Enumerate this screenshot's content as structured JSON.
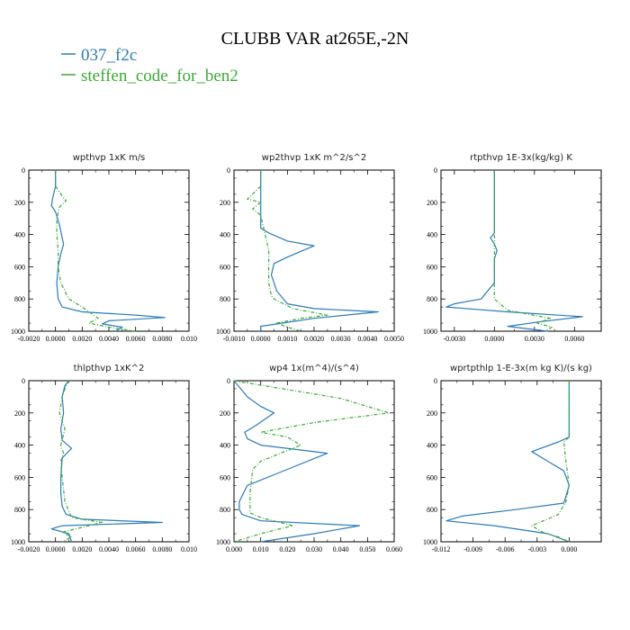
{
  "figure": {
    "title": "CLUBB VAR at265E,-2N",
    "legend": [
      {
        "name": "037_f2c",
        "color": "#2b7bb9"
      },
      {
        "name": "steffen_code_for_ben2",
        "color": "#3aa935"
      }
    ]
  },
  "chart_data": [
    {
      "type": "line",
      "title": "wpthvp  1xK m/s",
      "xlim": [
        -0.002,
        0.01
      ],
      "ylim": [
        0,
        1000
      ],
      "y_inverted": true,
      "xticks": [
        "-0.0020",
        "0.0000",
        "0.0020",
        "0.0040",
        "0.0060",
        "0.0080",
        "0.010"
      ],
      "xtick_values": [
        -0.002,
        0,
        0.002,
        0.004,
        0.006,
        0.008,
        0.01
      ],
      "yticks": [
        "0",
        "200",
        "400",
        "600",
        "800",
        "1000"
      ],
      "series": [
        {
          "name": "037_f2c",
          "style": "solid",
          "x": [
            0.0,
            0.0,
            -0.0002,
            -0.0003,
            0.0,
            0.0003,
            0.0006,
            0.0004,
            0.0002,
            0.0001,
            0.0002,
            0.0005,
            0.002,
            0.006,
            0.0082,
            0.004,
            0.0035,
            0.005,
            0.0045
          ],
          "y": [
            0,
            100,
            170,
            220,
            260,
            340,
            460,
            520,
            600,
            700,
            800,
            850,
            880,
            900,
            915,
            935,
            955,
            975,
            1000
          ]
        },
        {
          "name": "steffen_code_for_ben2",
          "style": "dashed",
          "x": [
            0.0,
            0.0,
            0.0005,
            0.0008,
            0.0003,
            0.0001,
            0.0001,
            0.0002,
            0.0002,
            0.0004,
            0.001,
            0.002,
            0.0032,
            0.0025,
            0.004,
            0.006
          ],
          "y": [
            0,
            100,
            160,
            190,
            230,
            300,
            400,
            500,
            600,
            700,
            800,
            850,
            920,
            950,
            975,
            1000
          ]
        }
      ]
    },
    {
      "type": "line",
      "title": "wp2thvp  1xK m^2/s^2",
      "xlim": [
        -0.001,
        0.005
      ],
      "ylim": [
        0,
        1000
      ],
      "y_inverted": true,
      "xticks": [
        "-0.0010",
        "0.0000",
        "0.0010",
        "0.0020",
        "0.0030",
        "0.0040",
        "0.0050"
      ],
      "xtick_values": [
        -0.001,
        0,
        0.001,
        0.002,
        0.003,
        0.004,
        0.005
      ],
      "yticks": [
        "0",
        "200",
        "400",
        "600",
        "800",
        "1000"
      ],
      "series": [
        {
          "name": "037_f2c",
          "style": "solid",
          "x": [
            0.0,
            0.0,
            0.0,
            0.0,
            0.0,
            0.0003,
            0.001,
            0.002,
            0.001,
            0.0005,
            0.0004,
            0.0006,
            0.001,
            0.002,
            0.0044,
            0.002,
            0.0008,
            0.0,
            0.0
          ],
          "y": [
            0,
            100,
            200,
            300,
            360,
            390,
            440,
            470,
            540,
            580,
            650,
            750,
            830,
            860,
            880,
            920,
            950,
            970,
            1000
          ]
        },
        {
          "name": "steffen_code_for_ben2",
          "style": "dashed",
          "x": [
            0.0,
            0.0,
            -0.0005,
            0.0,
            -0.0003,
            0.0,
            0.0001,
            0.0003,
            0.0003,
            0.0003,
            0.0004,
            0.0005,
            0.0012,
            0.0025,
            0.0015,
            0.0006,
            0.001,
            0.0015
          ],
          "y": [
            0,
            100,
            180,
            200,
            240,
            280,
            350,
            500,
            600,
            700,
            780,
            800,
            860,
            900,
            920,
            950,
            975,
            1000
          ]
        }
      ]
    },
    {
      "type": "line",
      "title": "rtpthvp  1E-3x(kg/kg) K",
      "xlim": [
        -0.004,
        0.008
      ],
      "ylim": [
        0,
        1000
      ],
      "y_inverted": true,
      "xticks": [
        "-0.0030",
        "0.0000",
        "0.0030",
        "0.0060"
      ],
      "xtick_values": [
        -0.003,
        0,
        0.003,
        0.006
      ],
      "yticks": [
        "0",
        "200",
        "400",
        "600",
        "800",
        "1000"
      ],
      "series": [
        {
          "name": "037_f2c",
          "style": "solid",
          "x": [
            0.0,
            0.0,
            0.0,
            -0.0003,
            0.0,
            0.0002,
            0.0,
            0.0,
            -0.001,
            -0.003,
            -0.0036,
            0.001,
            0.0066,
            0.0035,
            0.001,
            0.004
          ],
          "y": [
            0,
            200,
            390,
            420,
            460,
            500,
            550,
            700,
            800,
            830,
            850,
            880,
            910,
            940,
            970,
            1000
          ]
        },
        {
          "name": "steffen_code_for_ben2",
          "style": "dashed",
          "x": [
            0.0,
            0.0,
            0.0,
            0.0,
            0.0,
            0.001,
            0.0042,
            0.0032,
            0.0043,
            0.0038
          ],
          "y": [
            0,
            200,
            400,
            600,
            800,
            870,
            920,
            950,
            975,
            1000
          ]
        }
      ]
    },
    {
      "type": "line",
      "title": "thlpthvp  1xK^2",
      "xlim": [
        -0.002,
        0.01
      ],
      "ylim": [
        0,
        1000
      ],
      "y_inverted": true,
      "xticks": [
        "-0.0020",
        "0.0000",
        "0.0020",
        "0.0040",
        "0.0060",
        "0.0080",
        "0.010"
      ],
      "xtick_values": [
        -0.002,
        0,
        0.002,
        0.004,
        0.006,
        0.008,
        0.01
      ],
      "yticks": [
        "0",
        "200",
        "400",
        "600",
        "800",
        "1000"
      ],
      "series": [
        {
          "name": "037_f2c",
          "style": "solid",
          "x": [
            0.001,
            0.0007,
            0.0005,
            0.0006,
            0.0004,
            0.0005,
            0.0012,
            0.0005,
            0.0004,
            0.0004,
            0.0005,
            0.0008,
            0.002,
            0.008,
            0.0005,
            -0.0003,
            0.001,
            0.0012
          ],
          "y": [
            0,
            30,
            100,
            200,
            300,
            370,
            420,
            480,
            600,
            700,
            780,
            830,
            860,
            880,
            900,
            920,
            950,
            1000
          ]
        },
        {
          "name": "steffen_code_for_ben2",
          "style": "dashed",
          "x": [
            0.001,
            0.0008,
            0.0005,
            0.0003,
            0.0007,
            0.0004,
            0.0006,
            0.0004,
            0.0005,
            0.0007,
            0.0012,
            0.0035,
            0.002,
            0.0005,
            0.0012,
            0.0005
          ],
          "y": [
            0,
            30,
            100,
            200,
            300,
            400,
            450,
            500,
            600,
            750,
            850,
            880,
            910,
            940,
            970,
            1000
          ]
        }
      ]
    },
    {
      "type": "line",
      "title": "wp4  1x(m^4)/(s^4)",
      "xlim": [
        0,
        0.06
      ],
      "ylim": [
        0,
        1000
      ],
      "y_inverted": true,
      "xticks": [
        "0.000",
        "0.010",
        "0.020",
        "0.030",
        "0.040",
        "0.050",
        "0.060"
      ],
      "xtick_values": [
        0,
        0.01,
        0.02,
        0.03,
        0.04,
        0.05,
        0.06
      ],
      "yticks": [
        "0",
        "200",
        "400",
        "600",
        "800",
        "1000"
      ],
      "series": [
        {
          "name": "037_f2c",
          "style": "solid",
          "x": [
            0.0,
            0.005,
            0.01,
            0.015,
            0.008,
            0.004,
            0.005,
            0.01,
            0.035,
            0.02,
            0.005,
            0.002,
            0.002,
            0.003,
            0.01,
            0.047,
            0.03,
            0.01
          ],
          "y": [
            0,
            100,
            160,
            200,
            280,
            320,
            360,
            400,
            450,
            550,
            650,
            750,
            800,
            830,
            870,
            900,
            950,
            1000
          ]
        },
        {
          "name": "steffen_code_for_ben2",
          "style": "dashed",
          "x": [
            0.0,
            0.04,
            0.058,
            0.03,
            0.01,
            0.02,
            0.025,
            0.01,
            0.007,
            0.006,
            0.006,
            0.01,
            0.022,
            0.01,
            0.0
          ],
          "y": [
            0,
            110,
            200,
            260,
            320,
            350,
            400,
            500,
            550,
            700,
            820,
            850,
            900,
            950,
            1000
          ]
        }
      ]
    },
    {
      "type": "line",
      "title": "wprtpthlp  1-E-3x(m kg K)/(s kg)",
      "xlim": [
        -0.012,
        0.003
      ],
      "ylim": [
        0,
        1000
      ],
      "y_inverted": true,
      "xticks": [
        "-0.012",
        "-0.009",
        "-0.006",
        "-0.003",
        "0.000"
      ],
      "xtick_values": [
        -0.012,
        -0.009,
        -0.006,
        -0.003,
        0
      ],
      "yticks": [
        "0",
        "200",
        "400",
        "600",
        "800",
        "1000"
      ],
      "series": [
        {
          "name": "037_f2c",
          "style": "solid",
          "x": [
            0.0,
            0.0,
            0.0,
            -0.001,
            -0.0035,
            -0.002,
            -0.0005,
            0.0,
            -0.0005,
            -0.005,
            -0.01,
            -0.0115,
            -0.007,
            -0.002,
            0.0
          ],
          "y": [
            0,
            200,
            350,
            380,
            440,
            500,
            560,
            650,
            760,
            800,
            840,
            870,
            900,
            950,
            1000
          ]
        },
        {
          "name": "steffen_code_for_ben2",
          "style": "dashed",
          "x": [
            0.0,
            0.0,
            0.0,
            -0.0005,
            -0.0003,
            0.0,
            -0.0003,
            -0.001,
            -0.0035,
            -0.0025,
            -0.001,
            0.0
          ],
          "y": [
            0,
            200,
            350,
            380,
            500,
            650,
            750,
            830,
            900,
            940,
            970,
            1000
          ]
        }
      ]
    }
  ]
}
